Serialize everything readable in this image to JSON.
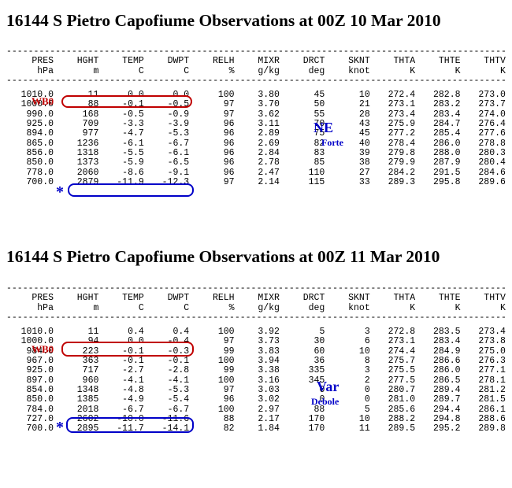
{
  "soundings": [
    {
      "title": "16144 S Pietro Capofiume Observations at 00Z 10 Mar 2010",
      "header1": [
        "PRES",
        "HGHT",
        "TEMP",
        "DWPT",
        "RELH",
        "MIXR",
        "DRCT",
        "SKNT",
        "THTA",
        "THTE",
        "THTV"
      ],
      "header2": [
        "hPa",
        "m",
        "C",
        "C",
        "%",
        "g/kg",
        "deg",
        "knot",
        "K",
        "K",
        "K"
      ],
      "rows": [
        [
          "1010.0",
          "11",
          "0.0",
          "0.0",
          "100",
          "3.80",
          "45",
          "10",
          "272.4",
          "282.8",
          "273.0"
        ],
        [
          "1000.0",
          "88",
          "-0.1",
          "-0.5",
          "97",
          "3.70",
          "50",
          "21",
          "273.1",
          "283.2",
          "273.7"
        ],
        [
          "990.0",
          "168",
          "-0.5",
          "-0.9",
          "97",
          "3.62",
          "55",
          "28",
          "273.4",
          "283.4",
          "274.0"
        ],
        [
          "925.0",
          "709",
          "-3.3",
          "-3.9",
          "96",
          "3.11",
          "70",
          "43",
          "275.9",
          "284.7",
          "276.4"
        ],
        [
          "894.0",
          "977",
          "-4.7",
          "-5.3",
          "96",
          "2.89",
          "75",
          "45",
          "277.2",
          "285.4",
          "277.6"
        ],
        [
          "865.0",
          "1236",
          "-6.1",
          "-6.7",
          "96",
          "2.69",
          "82",
          "40",
          "278.4",
          "286.0",
          "278.8"
        ],
        [
          "856.0",
          "1318",
          "-5.5",
          "-6.1",
          "96",
          "2.84",
          "83",
          "39",
          "279.8",
          "288.0",
          "280.3"
        ],
        [
          "850.0",
          "1373",
          "-5.9",
          "-6.5",
          "96",
          "2.78",
          "85",
          "38",
          "279.9",
          "287.9",
          "280.4"
        ],
        [
          "778.0",
          "2060",
          "-8.6",
          "-9.1",
          "96",
          "2.47",
          "110",
          "27",
          "284.2",
          "291.5",
          "284.6"
        ],
        [
          "700.0",
          "2879",
          "-11.9",
          "-12.3",
          "97",
          "2.14",
          "115",
          "33",
          "289.3",
          "295.8",
          "289.6"
        ]
      ],
      "wb0_label": "WB0",
      "marker": "*",
      "wind_label": "NE",
      "wind_desc": "Forte"
    },
    {
      "title": "16144 S Pietro Capofiume Observations at 00Z 11 Mar 2010",
      "header1": [
        "PRES",
        "HGHT",
        "TEMP",
        "DWPT",
        "RELH",
        "MIXR",
        "DRCT",
        "SKNT",
        "THTA",
        "THTE",
        "THTV"
      ],
      "header2": [
        "hPa",
        "m",
        "C",
        "C",
        "%",
        "g/kg",
        "deg",
        "knot",
        "K",
        "K",
        "K"
      ],
      "rows": [
        [
          "1010.0",
          "11",
          "0.4",
          "0.4",
          "100",
          "3.92",
          "5",
          "3",
          "272.8",
          "283.5",
          "273.4"
        ],
        [
          "1000.0",
          "94",
          "0.0",
          "-0.4",
          "97",
          "3.73",
          "30",
          "6",
          "273.1",
          "283.4",
          "273.8"
        ],
        [
          "984.0",
          "223",
          "-0.1",
          "-0.3",
          "99",
          "3.83",
          "60",
          "10",
          "274.4",
          "284.9",
          "275.0"
        ],
        [
          "967.0",
          "363",
          "-0.1",
          "-0.1",
          "100",
          "3.94",
          "36",
          "8",
          "275.7",
          "286.6",
          "276.3"
        ],
        [
          "925.0",
          "717",
          "-2.7",
          "-2.8",
          "99",
          "3.38",
          "335",
          "3",
          "275.5",
          "286.0",
          "277.1"
        ],
        [
          "897.0",
          "960",
          "-4.1",
          "-4.1",
          "100",
          "3.16",
          "345",
          "2",
          "277.5",
          "286.5",
          "278.1"
        ],
        [
          "854.0",
          "1348",
          "-4.8",
          "-5.3",
          "97",
          "3.03",
          "0",
          "0",
          "280.7",
          "289.4",
          "281.2"
        ],
        [
          "850.0",
          "1385",
          "-4.9",
          "-5.4",
          "96",
          "3.02",
          "0",
          "0",
          "281.0",
          "289.7",
          "281.5"
        ],
        [
          "784.0",
          "2018",
          "-6.7",
          "-6.7",
          "100",
          "2.97",
          "88",
          "5",
          "285.6",
          "294.4",
          "286.1"
        ],
        [
          "727.0",
          "2602",
          "-10.0",
          "-11.6",
          "88",
          "2.17",
          "170",
          "10",
          "288.2",
          "294.8",
          "288.6"
        ],
        [
          "700.0",
          "2895",
          "-11.7",
          "-14.1",
          "82",
          "1.84",
          "170",
          "11",
          "289.5",
          "295.2",
          "289.8"
        ]
      ],
      "wb0_label": "WB0",
      "marker": "*",
      "wind_label": "Var",
      "wind_desc": "Debole"
    }
  ]
}
